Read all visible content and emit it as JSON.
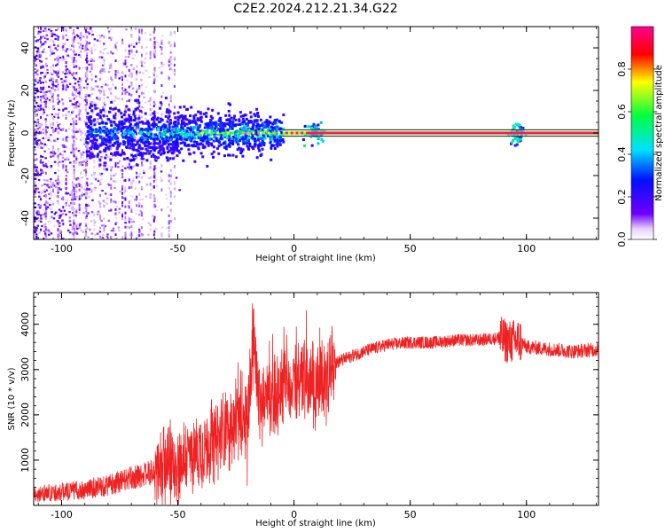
{
  "title": "C2E2.2024.212.21.34.G22",
  "chart_data": [
    {
      "type": "heatmap",
      "title": "C2E2.2024.212.21.34.G22",
      "xlabel": "Height of straight line (km)",
      "ylabel": "Frequency (Hz)",
      "xlim": [
        -112,
        131
      ],
      "ylim": [
        -50,
        50
      ],
      "xticks": [
        -100,
        -50,
        0,
        50,
        100
      ],
      "yticks": [
        -40,
        -20,
        0,
        20,
        40
      ],
      "colorbar": {
        "label": "Normalized spectral amplitude",
        "range": [
          0,
          1
        ],
        "ticks": [
          0.0,
          0.2,
          0.4,
          0.6,
          0.8
        ],
        "colormap": [
          "#ffffff",
          "#7000ff",
          "#0000ff",
          "#00e0ff",
          "#00ff40",
          "#ffff00",
          "#ff0000",
          "#ff0080"
        ]
      },
      "description_of_values": {
        "noise_region_x": [
          -112,
          -45
        ],
        "blob_region_x": [
          -90,
          -5
        ],
        "line_start_x": -5,
        "line_frequency": 0,
        "side_lines_frequency": [
          -1.5,
          1.5
        ]
      }
    },
    {
      "type": "line",
      "xlabel": "Height of straight line (km)",
      "ylabel": "SNR (10 * v/v)",
      "xlim": [
        -112,
        131
      ],
      "ylim": [
        0,
        4700
      ],
      "xticks": [
        -100,
        -50,
        0,
        50,
        100
      ],
      "yticks": [
        1000,
        2000,
        3000,
        4000
      ],
      "series": [
        {
          "color": "#ee2222",
          "x": [
            -112,
            -100,
            -90,
            -80,
            -70,
            -60,
            -50,
            -40,
            -30,
            -25,
            -20,
            -17,
            -15,
            -10,
            -5,
            0,
            5,
            10,
            15,
            20,
            25,
            30,
            40,
            50,
            60,
            70,
            80,
            88,
            93,
            97,
            100,
            110,
            120,
            131
          ],
          "y": [
            250,
            300,
            350,
            450,
            600,
            750,
            950,
            1250,
            1550,
            1850,
            2100,
            3800,
            2300,
            2500,
            2600,
            2700,
            2800,
            2600,
            3050,
            3200,
            3300,
            3400,
            3550,
            3600,
            3600,
            3650,
            3650,
            3700,
            3600,
            3650,
            3500,
            3450,
            3400,
            3450
          ]
        }
      ]
    }
  ]
}
